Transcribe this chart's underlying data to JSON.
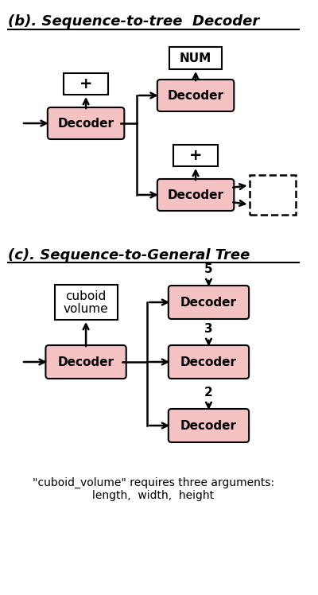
{
  "title_b": "(b). Sequence-to-tree  Decoder",
  "title_c": "(c). Sequence-to-General Tree",
  "caption": "\"cuboid_volume\" requires three arguments:\nlength,  width,  height",
  "decoder_color": "#f4c2c2",
  "white_box_color": "#ffffff",
  "box_edge_color": "#000000",
  "font_size_title": 13,
  "font_size_box": 11,
  "font_size_label": 11,
  "font_size_caption": 10
}
